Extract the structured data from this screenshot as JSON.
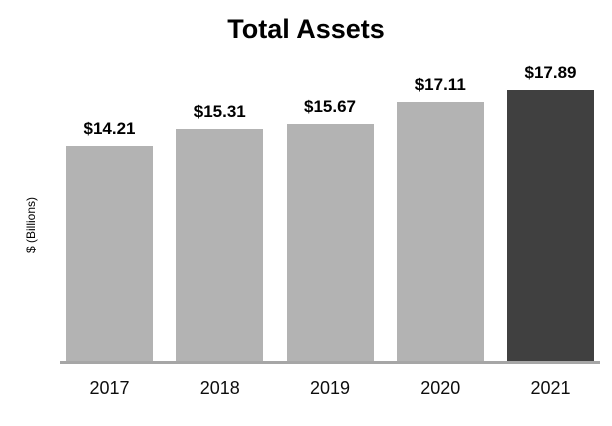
{
  "chart_data": {
    "type": "bar",
    "title": "Total Assets",
    "xlabel": "",
    "ylabel": "$ (Billions)",
    "categories": [
      "2017",
      "2018",
      "2019",
      "2020",
      "2021"
    ],
    "values": [
      14.21,
      15.31,
      15.67,
      17.11,
      17.89
    ],
    "value_labels": [
      "$14.21",
      "$15.31",
      "$15.67",
      "$17.11",
      "$17.89"
    ],
    "ylim": [
      0,
      18.5
    ],
    "grid": false,
    "legend_position": "none",
    "highlight_index": 4,
    "colors": {
      "bar_default": "#b3b3b3",
      "bar_highlight": "#404040",
      "axis_line": "#a6a6a6",
      "label_text": "#000000"
    }
  }
}
